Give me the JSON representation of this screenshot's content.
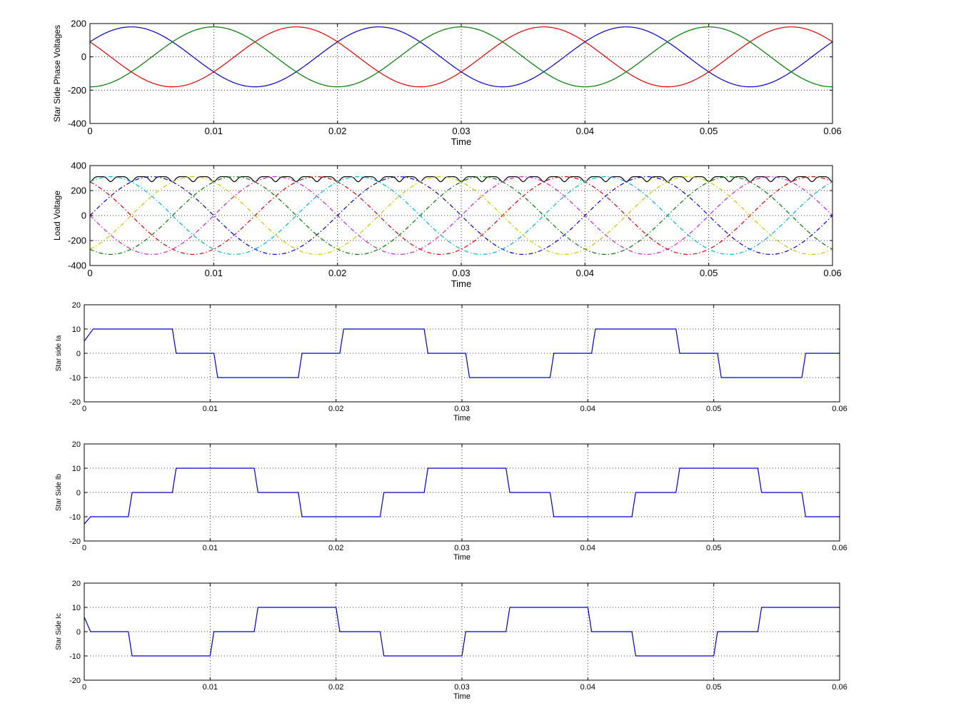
{
  "colors": {
    "blue": "#0000cc",
    "green": "#007a00",
    "red": "#e00000",
    "cyan": "#00b4d8",
    "magenta": "#d020d0",
    "yellow": "#c8c800",
    "black": "#000000"
  },
  "chart_data": [
    {
      "type": "line",
      "title": "",
      "xlabel": "Time",
      "ylabel": "Star Side Phase Voltages",
      "xlim": [
        0,
        0.06
      ],
      "ylim": [
        -400,
        200
      ],
      "xticks": [
        "0",
        "0.01",
        "0.02",
        "0.03",
        "0.04",
        "0.05",
        "0.06"
      ],
      "yticks": [
        "200",
        "0",
        "-200",
        "-400"
      ],
      "grid": true,
      "series": [
        {
          "color": "blue",
          "waveform": "sine",
          "amplitude": 180,
          "frequency_hz": 50,
          "phase_deg": 30
        },
        {
          "color": "red",
          "waveform": "sine",
          "amplitude": 180,
          "frequency_hz": 50,
          "phase_deg": 150
        },
        {
          "color": "green",
          "waveform": "sine",
          "amplitude": 180,
          "frequency_hz": 50,
          "phase_deg": -90
        }
      ]
    },
    {
      "type": "line",
      "title": "",
      "xlabel": "Time",
      "ylabel": "Load Voltage",
      "xlim": [
        0,
        0.06
      ],
      "ylim": [
        -400,
        400
      ],
      "xticks": [
        "0",
        "0.01",
        "0.02",
        "0.03",
        "0.04",
        "0.05",
        "0.06"
      ],
      "yticks": [
        "400",
        "200",
        "0",
        "-200",
        "-400"
      ],
      "grid": true,
      "series": [
        {
          "color": "black",
          "waveform": "rectified_envelope",
          "amplitude": 311,
          "ripple_dips_at_multiples_of": 0.001667,
          "dip_depth": 40
        },
        {
          "color": "blue",
          "style": "dashdot",
          "waveform": "sine",
          "amplitude": 311,
          "frequency_hz": 50,
          "phase_deg": 0
        },
        {
          "color": "red",
          "style": "dashdot",
          "waveform": "sine",
          "amplitude": 311,
          "frequency_hz": 50,
          "phase_deg": 120
        },
        {
          "color": "green",
          "style": "dashdot",
          "waveform": "sine",
          "amplitude": 311,
          "frequency_hz": 50,
          "phase_deg": 240
        },
        {
          "color": "cyan",
          "style": "dashdot",
          "waveform": "sine",
          "amplitude": 311,
          "frequency_hz": 50,
          "phase_deg": 60
        },
        {
          "color": "magenta",
          "style": "dashdot",
          "waveform": "sine",
          "amplitude": 311,
          "frequency_hz": 50,
          "phase_deg": 180
        },
        {
          "color": "yellow",
          "style": "dashdot",
          "waveform": "sine",
          "amplitude": 311,
          "frequency_hz": 50,
          "phase_deg": 300
        }
      ]
    },
    {
      "type": "line",
      "title": "",
      "xlabel": "Time",
      "ylabel": "Star side Ia",
      "xlim": [
        0,
        0.06
      ],
      "ylim": [
        -20,
        20
      ],
      "xticks": [
        "0",
        "0.01",
        "0.02",
        "0.03",
        "0.04",
        "0.05",
        "0.06"
      ],
      "yticks": [
        "20",
        "10",
        "0",
        "-10",
        "-20"
      ],
      "grid": true,
      "series": [
        {
          "color": "blue",
          "waveform": "step",
          "x": [
            0,
            0.0007,
            0.007,
            0.0073,
            0.0103,
            0.0106,
            0.017,
            0.0173,
            0.0203,
            0.0206,
            0.027,
            0.0273,
            0.0303,
            0.0306,
            0.037,
            0.0373,
            0.0403,
            0.0406,
            0.047,
            0.0473,
            0.0503,
            0.0506,
            0.057,
            0.0573,
            0.06
          ],
          "y": [
            5,
            10,
            10,
            0,
            0,
            -10,
            -10,
            0,
            0,
            10,
            10,
            0,
            0,
            -10,
            -10,
            0,
            0,
            10,
            10,
            0,
            0,
            -10,
            -10,
            0,
            0
          ]
        }
      ]
    },
    {
      "type": "line",
      "title": "",
      "xlabel": "Time",
      "ylabel": "Star Side Ib",
      "xlim": [
        0,
        0.06
      ],
      "ylim": [
        -20,
        20
      ],
      "xticks": [
        "0",
        "0.01",
        "0.02",
        "0.03",
        "0.04",
        "0.05",
        "0.06"
      ],
      "yticks": [
        "20",
        "10",
        "0",
        "-10",
        "-20"
      ],
      "grid": true,
      "series": [
        {
          "color": "blue",
          "waveform": "step",
          "x": [
            0,
            0.0005,
            0.0035,
            0.0038,
            0.007,
            0.0073,
            0.0135,
            0.0138,
            0.017,
            0.0173,
            0.0235,
            0.0238,
            0.027,
            0.0273,
            0.0335,
            0.0338,
            0.037,
            0.0373,
            0.0435,
            0.0438,
            0.047,
            0.0473,
            0.0535,
            0.0538,
            0.057,
            0.0573,
            0.06
          ],
          "y": [
            -13,
            -10,
            -10,
            0,
            0,
            10,
            10,
            0,
            0,
            -10,
            -10,
            0,
            0,
            10,
            10,
            0,
            0,
            -10,
            -10,
            0,
            0,
            10,
            10,
            0,
            0,
            -10,
            -10
          ]
        }
      ]
    },
    {
      "type": "line",
      "title": "",
      "xlabel": "Time",
      "ylabel": "Star Side Ic",
      "xlim": [
        0,
        0.06
      ],
      "ylim": [
        -20,
        20
      ],
      "xticks": [
        "0",
        "0.01",
        "0.02",
        "0.03",
        "0.04",
        "0.05",
        "0.06"
      ],
      "yticks": [
        "20",
        "10",
        "0",
        "-10",
        "-20"
      ],
      "grid": true,
      "series": [
        {
          "color": "blue",
          "waveform": "step",
          "x": [
            0,
            0.0005,
            0.0035,
            0.0038,
            0.01,
            0.0103,
            0.0135,
            0.0138,
            0.02,
            0.0203,
            0.0235,
            0.0238,
            0.03,
            0.0303,
            0.0335,
            0.0338,
            0.04,
            0.0403,
            0.0435,
            0.0438,
            0.05,
            0.0503,
            0.0535,
            0.0538,
            0.06
          ],
          "y": [
            6,
            0,
            0,
            -10,
            -10,
            0,
            0,
            10,
            10,
            0,
            0,
            -10,
            -10,
            0,
            0,
            10,
            10,
            0,
            0,
            -10,
            -10,
            0,
            0,
            10,
            10
          ]
        }
      ]
    }
  ]
}
